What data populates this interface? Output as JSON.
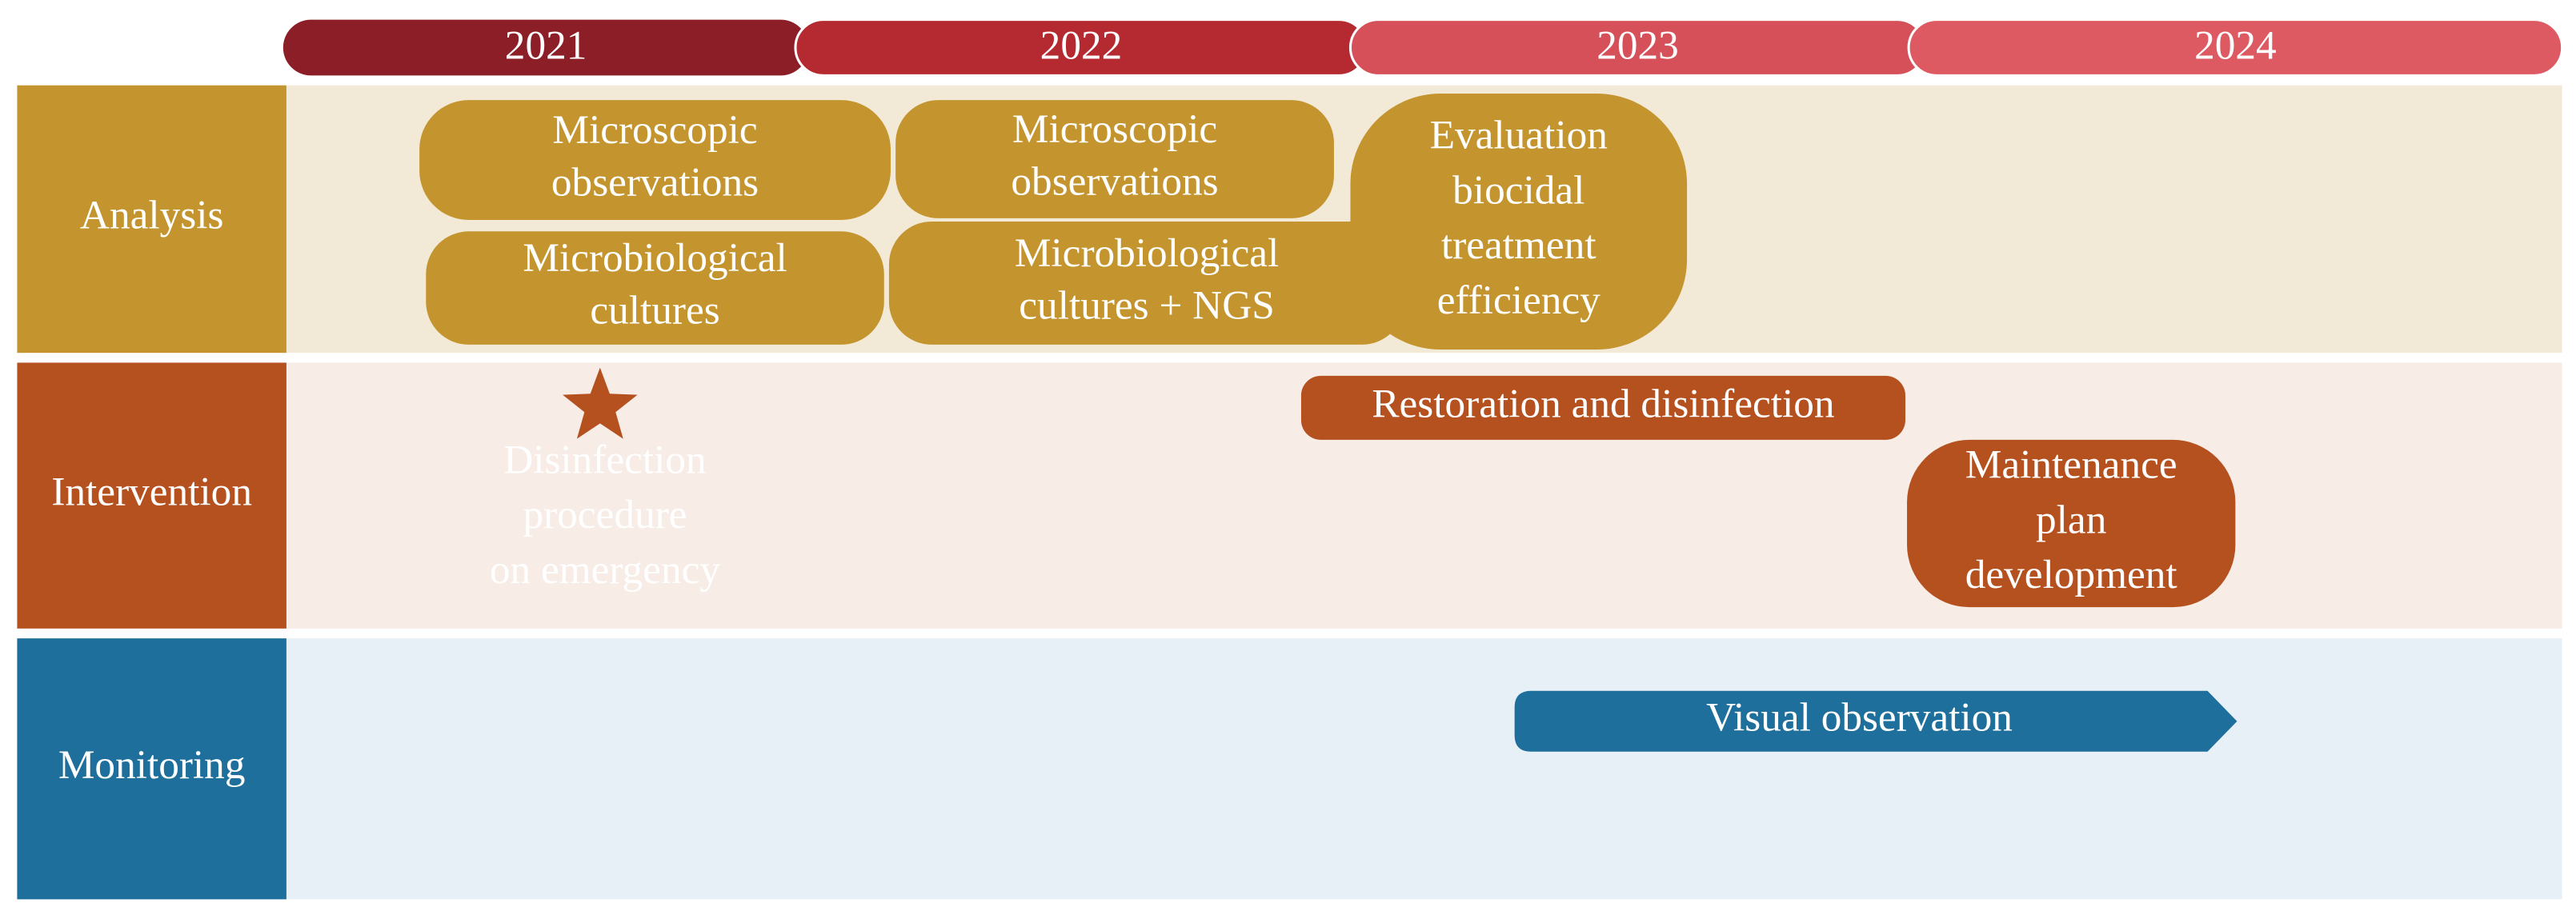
{
  "years": [
    "2021",
    "2022",
    "2023",
    "2024"
  ],
  "rows": [
    {
      "label": "Analysis"
    },
    {
      "label": "Intervention"
    },
    {
      "label": "Monitoring"
    }
  ],
  "items": [
    {
      "lines": [
        "Microscopic",
        "observations"
      ]
    },
    {
      "lines": [
        "Microbiological",
        "cultures"
      ]
    },
    {
      "lines": [
        "Microscopic",
        "observations"
      ]
    },
    {
      "lines": [
        "Microbiological",
        "cultures + NGS"
      ]
    },
    {
      "lines": [
        "Evaluation",
        "biocidal",
        "treatment",
        "efficiency"
      ]
    },
    {
      "lines": [
        "Disinfection",
        "procedure",
        "on emergency"
      ]
    },
    {
      "lines": [
        "Restoration and disinfection"
      ]
    },
    {
      "lines": [
        "Maintenance",
        "plan",
        "development"
      ]
    },
    {
      "lines": [
        "Visual observation"
      ]
    }
  ]
}
